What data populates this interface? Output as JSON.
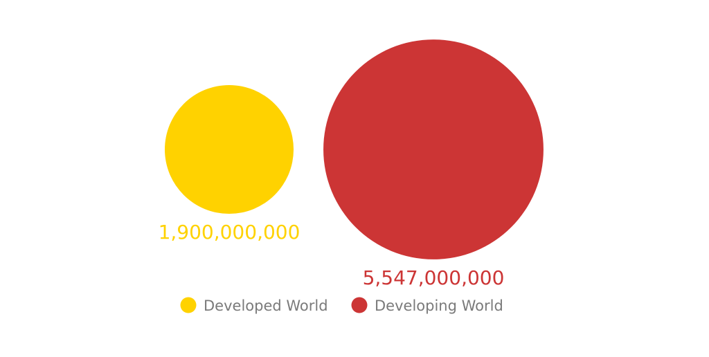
{
  "chart_data": {
    "type": "bubble",
    "categories": [
      "Developed World",
      "Developing World"
    ],
    "values": [
      1900000000,
      5547000000
    ],
    "value_labels": [
      "1,900,000,000",
      "5,547,000,000"
    ],
    "colors": [
      "#FFD200",
      "#CC3535"
    ],
    "legend": {
      "placement": "bottom",
      "entries": [
        "Developed World",
        "Developing World"
      ]
    },
    "label_color": "#7a7a7a"
  }
}
